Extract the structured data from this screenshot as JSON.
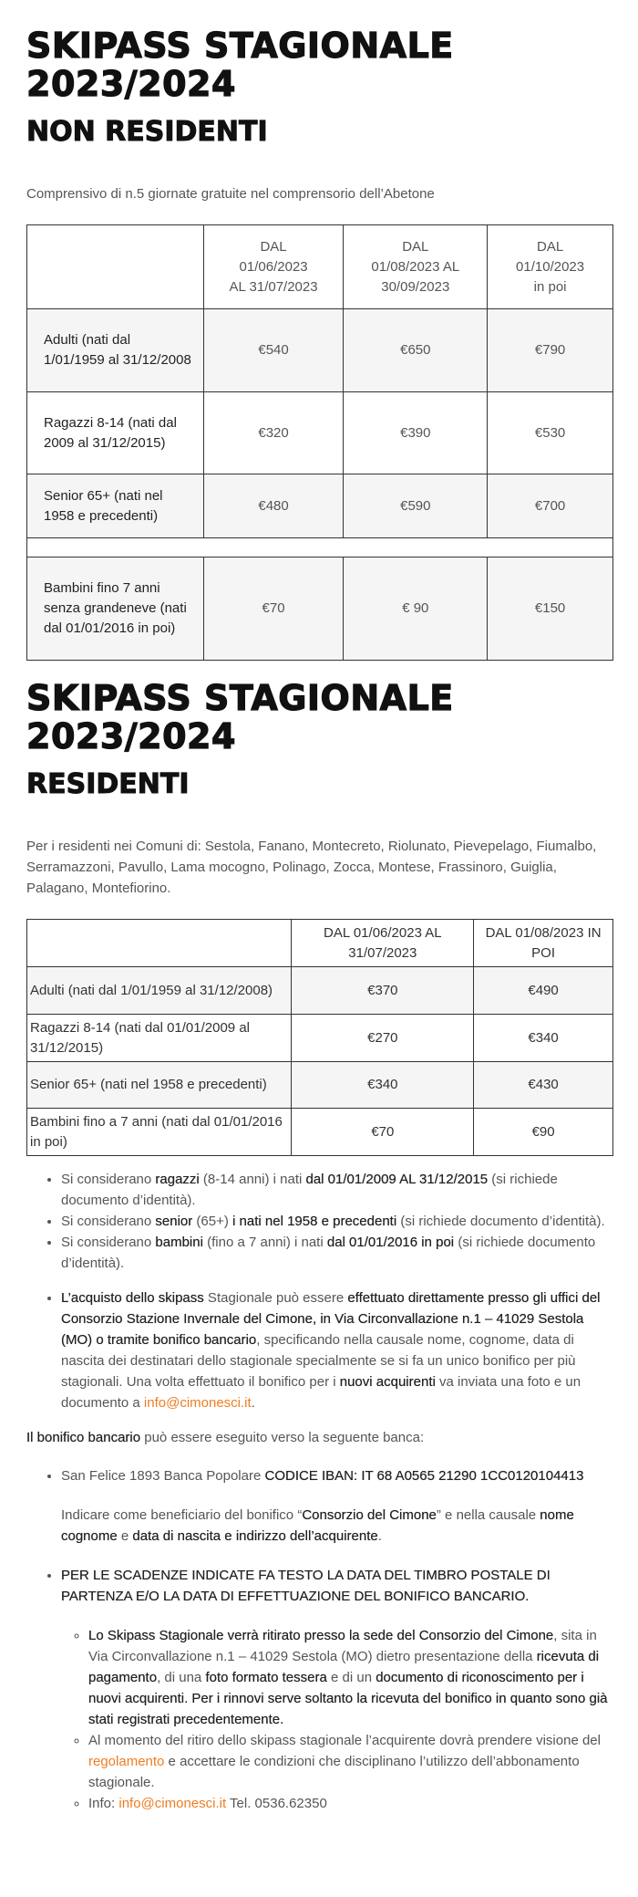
{
  "section1": {
    "title_line1": "SKIPASS STAGIONALE",
    "title_line2": "2023/2024",
    "subtitle": "NON RESIDENTI",
    "intro": "Comprensivo di n.5 giornate gratuite nel comprensorio dell’Abetone",
    "table": {
      "headers": [
        [
          "DAL",
          "01/06/2023",
          "AL 31/07/2023"
        ],
        [
          "DAL",
          "01/08/2023 AL",
          "30/09/2023"
        ],
        [
          "DAL",
          "01/10/2023",
          "in poi"
        ]
      ],
      "rows": [
        {
          "label": "Adulti (nati dal 1/01/1959 al 31/12/2008",
          "values": [
            "€540",
            "€650",
            "€790"
          ]
        },
        {
          "label": "Ragazzi 8-14 (nati dal 2009 al 31/12/2015)",
          "values": [
            "€320",
            "€390",
            "€530"
          ]
        },
        {
          "label": "Senior 65+ (nati nel 1958 e precedenti)",
          "values": [
            "€480",
            "€590",
            "€700"
          ]
        },
        {
          "label": "Bambini fino 7 anni senza grandeneve (nati dal 01/01/2016 in poi)",
          "values": [
            "€70",
            "€ 90",
            "€150"
          ]
        }
      ]
    }
  },
  "section2": {
    "title_line1": "SKIPASS STAGIONALE",
    "title_line2": "2023/2024",
    "subtitle": "RESIDENTI",
    "intro": "Per i residenti nei Comuni di: Sestola, Fanano, Montecreto, Riolunato, Pievepelago, Fiumalbo, Serramazzoni, Pavullo, Lama mocogno, Polinago, Zocca, Montese, Frassinoro, Guiglia, Palagano, Montefiorino.",
    "table": {
      "headers": [
        "DAL 01/06/2023 AL 31/07/2023",
        "DAL 01/08/2023 IN POI"
      ],
      "rows": [
        {
          "label": "Adulti (nati dal 1/01/1959 al 31/12/2008)",
          "values": [
            "€370",
            "€490"
          ]
        },
        {
          "label": "Ragazzi 8-14 (nati dal 01/01/2009 al 31/12/2015)",
          "values": [
            "€270",
            "€340"
          ]
        },
        {
          "label": "Senior 65+ (nati nel 1958 e precedenti)",
          "values": [
            "€340",
            "€430"
          ]
        },
        {
          "label": "Bambini fino a 7 anni (nati dal 01/01/2016 in poi)",
          "values": [
            "€70",
            "€90"
          ]
        }
      ]
    }
  },
  "notes": {
    "ragazzi": [
      "Si considerano ",
      "ragazzi",
      " (8-14 anni) i nati ",
      "dal 01/01/2009 AL 31/12/2015",
      " (si richiede documento d’identità)."
    ],
    "senior": [
      "Si considerano ",
      "senior",
      " (65+) ",
      "i nati nel 1958 e precedenti",
      " (si richiede documento d’identità)."
    ],
    "bambini": [
      "Si considerano ",
      "bambini",
      " (fino a 7 anni) i nati ",
      "dal 01/01/2016 in poi",
      " (si richiede documento d’identità)."
    ],
    "acquisto": [
      "L’acquisto dello skipass",
      " Stagionale può essere ",
      "effettuato direttamente presso gli uffici del Consorzio Stazione Invernale del Cimone, in Via Circonvallazione n.1 – 41029 Sestola (MO) o tramite bonifico bancario",
      ", specificando nella causale nome, cognome, data di nascita dei destinatari dello stagionale specialmente se si fa un unico bonifico per più stagionali. Una volta effettuato il bonifico per i ",
      "nuovi acquirenti",
      " va inviata una foto e un documento a ",
      "info@cimonesci.it",
      "."
    ],
    "bonifico_intro": [
      "Il bonifico bancario",
      " può essere eseguito verso la seguente banca:"
    ],
    "banca": [
      "San Felice 1893 Banca Popolare ",
      "CODICE IBAN: IT 68 A0565 21290 1CC0120104413"
    ],
    "beneficiario": [
      "Indicare come beneficiario del bonifico “",
      "Consorzio del Cimone",
      "” e nella causale ",
      "nome cognome",
      " e ",
      "data di nascita e indirizzo dell’acquirente",
      "."
    ],
    "scadenze": "PER LE SCADENZE INDICATE FA TESTO LA DATA DEL TIMBRO POSTALE DI PARTENZA E/O LA DATA DI EFFETTUAZIONE DEL BONIFICO BANCARIO.",
    "ritiro": [
      "Lo Skipass Stagionale verrà ritirato presso la sede del Consorzio del Cimone",
      ", sita in Via Circonvallazione n.1 – 41029 Sestola (MO) dietro presentazione della ",
      "ricevuta di pagamento",
      ", di una ",
      "foto formato tessera",
      " e di un ",
      "documento di riconoscimento per i nuovi acquirenti. Per i rinnovi serve soltanto la ricevuta del bonifico in quanto sono già stati registrati precedentemente."
    ],
    "regolamento": [
      "Al momento del ritiro dello skipass stagionale l’acquirente dovrà prendere visione del ",
      "regolamento",
      " e accettare le condizioni che disciplinano l’utilizzo dell’abbonamento stagionale."
    ],
    "info": [
      "Info: ",
      "info@cimonesci.it",
      " Tel. 0536.62350"
    ]
  },
  "colors": {
    "link": "#ef7d22",
    "heading": "#111111",
    "row_alt": "#f5f5f5"
  }
}
